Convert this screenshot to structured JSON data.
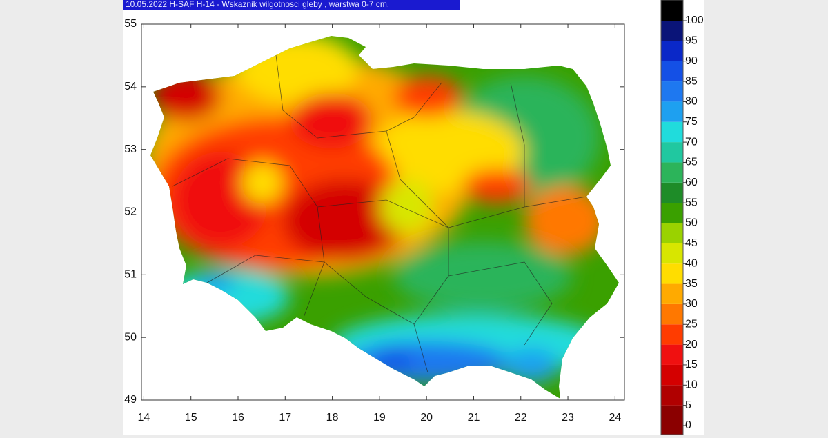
{
  "title": "10.05.2022 H-SAF H-14 - Wskaznik wilgotnosci gleby , warstwa 0-7 cm.",
  "map": {
    "xlim": [
      13.95,
      24.2
    ],
    "ylim": [
      49,
      55
    ],
    "xticks": [
      14,
      15,
      16,
      17,
      18,
      19,
      20,
      21,
      22,
      23,
      24
    ],
    "yticks": [
      49,
      50,
      51,
      52,
      53,
      54,
      55
    ]
  },
  "colorbar": {
    "ticks": [
      0,
      5,
      10,
      15,
      20,
      25,
      30,
      35,
      40,
      45,
      50,
      55,
      60,
      65,
      70,
      75,
      80,
      85,
      90,
      95,
      100
    ],
    "colors": [
      "#8b0000",
      "#b00000",
      "#d40000",
      "#f01010",
      "#ff3c00",
      "#ff7800",
      "#ffaa00",
      "#ffdd00",
      "#d8e600",
      "#9ad200",
      "#3aa000",
      "#1e8c28",
      "#2cb45a",
      "#20c8a0",
      "#20dcdc",
      "#1ea0f0",
      "#1e78f0",
      "#1450e6",
      "#0a28c8",
      "#0a1478",
      "#000000"
    ]
  }
}
